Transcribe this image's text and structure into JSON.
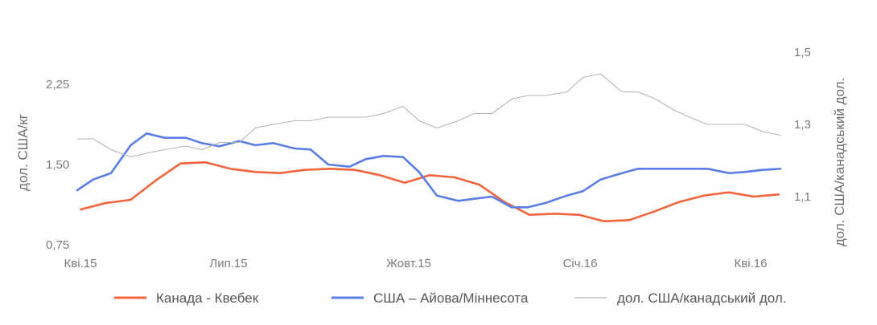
{
  "chart_data": {
    "type": "line",
    "title": "",
    "xlabel": "",
    "ylabel_left": "дол. США/кг",
    "ylabel_right": "дол. США/канадський дол.",
    "x_ticks": [
      "Кві.15",
      "Лип.15",
      "Жовт.15",
      "Січ.16",
      "Кві.16"
    ],
    "y_left_ticks": [
      "2,25",
      "1,50",
      "0,75"
    ],
    "y_right_ticks": [
      "1,5",
      "1,3",
      "1,1"
    ],
    "ylim_left": [
      0.75,
      2.25
    ],
    "ylim_right": [
      0.9,
      1.5
    ],
    "grid": false,
    "legend_position": "bottom",
    "series": [
      {
        "name": "Канада - Квебек",
        "axis": "left",
        "color": "#f4643c",
        "width": "bold",
        "x": [
          "2015-04-03",
          "2015-04-17",
          "2015-05-01",
          "2015-05-15",
          "2015-05-29",
          "2015-06-12",
          "2015-06-26",
          "2015-07-10",
          "2015-07-24",
          "2015-08-07",
          "2015-08-21",
          "2015-09-04",
          "2015-09-18",
          "2015-10-02",
          "2015-10-16",
          "2015-10-30",
          "2015-11-13",
          "2015-11-27",
          "2015-12-11",
          "2015-12-25",
          "2016-01-08",
          "2016-01-22",
          "2016-02-05",
          "2016-02-19",
          "2016-03-04",
          "2016-03-18",
          "2016-04-01",
          "2016-04-15",
          "2016-04-29"
        ],
        "y": [
          1.08,
          1.14,
          1.17,
          1.35,
          1.51,
          1.52,
          1.46,
          1.43,
          1.42,
          1.45,
          1.46,
          1.45,
          1.4,
          1.33,
          1.4,
          1.38,
          1.31,
          1.15,
          1.03,
          1.04,
          1.03,
          0.97,
          0.98,
          1.06,
          1.15,
          1.21,
          1.24,
          1.2,
          1.22
        ]
      },
      {
        "name": "США – Айова/Міннесота",
        "axis": "left",
        "color": "#5b7ee5",
        "width": "bold",
        "x": [
          "2015-04-01",
          "2015-04-10",
          "2015-04-20",
          "2015-05-01",
          "2015-05-10",
          "2015-05-20",
          "2015-06-01",
          "2015-06-10",
          "2015-06-20",
          "2015-07-01",
          "2015-07-10",
          "2015-07-20",
          "2015-08-01",
          "2015-08-10",
          "2015-08-20",
          "2015-09-01",
          "2015-09-10",
          "2015-09-20",
          "2015-10-01",
          "2015-10-10",
          "2015-10-20",
          "2015-11-01",
          "2015-11-10",
          "2015-11-20",
          "2015-12-01",
          "2015-12-10",
          "2015-12-20",
          "2016-01-01",
          "2016-01-10",
          "2016-01-20",
          "2016-02-01",
          "2016-02-10",
          "2016-02-20",
          "2016-03-01",
          "2016-03-10",
          "2016-03-20",
          "2016-04-01",
          "2016-04-10",
          "2016-04-20",
          "2016-04-30"
        ],
        "y": [
          1.26,
          1.36,
          1.42,
          1.68,
          1.79,
          1.75,
          1.75,
          1.7,
          1.67,
          1.72,
          1.68,
          1.7,
          1.65,
          1.64,
          1.5,
          1.48,
          1.55,
          1.58,
          1.57,
          1.43,
          1.21,
          1.16,
          1.18,
          1.2,
          1.1,
          1.1,
          1.14,
          1.21,
          1.25,
          1.36,
          1.42,
          1.46,
          1.46,
          1.46,
          1.46,
          1.46,
          1.42,
          1.43,
          1.45,
          1.46
        ]
      },
      {
        "name": "дол. США/канадський дол.",
        "axis": "right",
        "color": "#b3b3b3",
        "width": "thin",
        "x": [
          "2015-04-01",
          "2015-04-10",
          "2015-04-20",
          "2015-05-01",
          "2015-05-10",
          "2015-05-20",
          "2015-06-01",
          "2015-06-10",
          "2015-06-20",
          "2015-07-01",
          "2015-07-10",
          "2015-07-20",
          "2015-08-01",
          "2015-08-10",
          "2015-08-20",
          "2015-09-01",
          "2015-09-10",
          "2015-09-20",
          "2015-10-01",
          "2015-10-10",
          "2015-10-20",
          "2015-11-01",
          "2015-11-10",
          "2015-11-20",
          "2015-12-01",
          "2015-12-10",
          "2015-12-20",
          "2016-01-01",
          "2016-01-10",
          "2016-01-20",
          "2016-02-01",
          "2016-02-10",
          "2016-02-20",
          "2016-03-01",
          "2016-03-10",
          "2016-03-20",
          "2016-04-01",
          "2016-04-10",
          "2016-04-20",
          "2016-04-30"
        ],
        "y": [
          1.26,
          1.26,
          1.23,
          1.21,
          1.22,
          1.23,
          1.24,
          1.23,
          1.25,
          1.25,
          1.29,
          1.3,
          1.31,
          1.31,
          1.32,
          1.32,
          1.32,
          1.33,
          1.35,
          1.31,
          1.29,
          1.31,
          1.33,
          1.33,
          1.37,
          1.38,
          1.38,
          1.39,
          1.43,
          1.44,
          1.39,
          1.39,
          1.37,
          1.34,
          1.32,
          1.3,
          1.3,
          1.3,
          1.28,
          1.27
        ]
      }
    ]
  }
}
